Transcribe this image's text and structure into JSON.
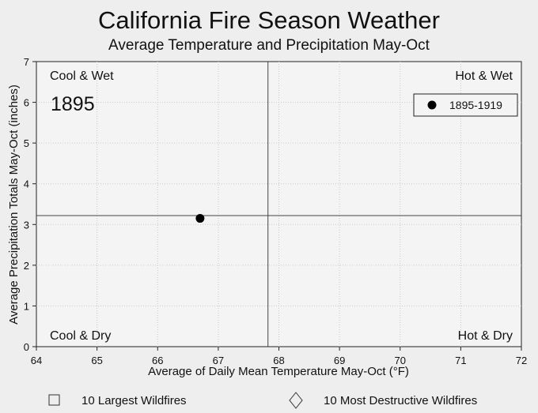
{
  "chart_data": {
    "type": "scatter",
    "title": "California Fire Season Weather",
    "subtitle": "Average Temperature and Precipitation May-Oct",
    "xlabel": "Average of Daily Mean Temperature May-Oct (°F)",
    "ylabel": "Average Precipitation Totals May-Oct (inches)",
    "xlim": [
      64,
      72
    ],
    "ylim": [
      0,
      7
    ],
    "x_ticks": [
      "64",
      "65",
      "66",
      "67",
      "68",
      "69",
      "70",
      "71",
      "72"
    ],
    "y_ticks": [
      "0",
      "1",
      "2",
      "3",
      "4",
      "5",
      "6",
      "7"
    ],
    "grid": true,
    "reference_lines": {
      "x": 67.82,
      "y": 3.22
    },
    "quadrant_labels": {
      "top_left": "Cool & Wet",
      "top_right": "Hot & Wet",
      "bottom_left": "Cool & Dry",
      "bottom_right": "Hot & Dry"
    },
    "year_label": "1895",
    "legend_placement": "top-right",
    "series": [
      {
        "name": "1895-1919",
        "marker": "filled-circle",
        "color": "#000000",
        "points": [
          {
            "x": 66.7,
            "y": 3.15
          }
        ]
      }
    ],
    "bottom_legend": [
      {
        "marker": "square-outline",
        "label": "10 Largest Wildfires"
      },
      {
        "marker": "diamond-outline",
        "label": "10 Most Destructive Wildfires"
      }
    ]
  }
}
